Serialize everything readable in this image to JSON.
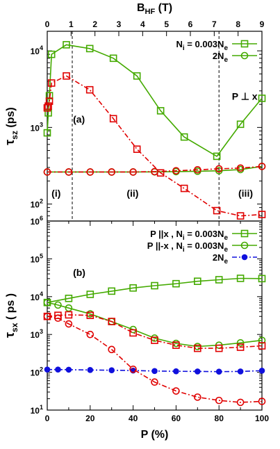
{
  "chart_data": [
    {
      "id": "a",
      "type": "line",
      "x_top": {
        "label_main": "B",
        "label_sub": "HF",
        "label_unit": " (T)",
        "range": [
          0,
          9
        ],
        "ticks": [
          0,
          1,
          2,
          3,
          4,
          5,
          6,
          7,
          8,
          9
        ]
      },
      "x_bottom_range": [
        0,
        100
      ],
      "y": {
        "label_main": "τ",
        "label_sub": "sz",
        "label_unit": " (ps)",
        "scale": "log",
        "range": [
          60,
          18000
        ],
        "ticks": [
          {
            "value": 100,
            "mant": "10",
            "exp": "2"
          },
          {
            "value": 1000,
            "mant": "10",
            "exp": "3"
          },
          {
            "value": 10000,
            "mant": "10",
            "exp": "4"
          }
        ]
      },
      "grid": false,
      "legend_position": "top-right",
      "vlines": [
        7.5,
        80
      ],
      "annotations": [
        {
          "text": "(a)",
          "x": 12,
          "y": 1150
        },
        {
          "text": "P ⊥ x",
          "x": 86,
          "y": 2300
        },
        {
          "text": "(i)",
          "x": 2,
          "y": 125
        },
        {
          "text": "(ii)",
          "x": 37,
          "y": 125
        },
        {
          "text": "(iii)",
          "x": 89,
          "y": 125
        }
      ],
      "series": [
        {
          "name": "N",
          "name_sub": "i",
          "name_rest": " = 0.003N",
          "name_sub2": "e",
          "color": "#44aa00",
          "marker": "square",
          "dash": "solid",
          "x": [
            0,
            0.5,
            1,
            2,
            8.9,
            19.8,
            30.8,
            41.8,
            52.8,
            63.8,
            79,
            90,
            100
          ],
          "y": [
            850,
            1550,
            2600,
            9000,
            12000,
            10700,
            8000,
            4700,
            1650,
            750,
            420,
            1100,
            2400
          ]
        },
        {
          "name": "2N",
          "name_sub": "e",
          "name_rest": "",
          "name_sub2": "",
          "color": "#44aa00",
          "marker": "circle",
          "dash": "solid",
          "x": [
            0,
            10,
            20,
            30,
            40,
            50,
            60,
            70,
            80,
            90,
            100
          ],
          "y": [
            262,
            262,
            262,
            262,
            262,
            263,
            265,
            268,
            272,
            282,
            310
          ]
        },
        {
          "name": "",
          "color": "#e00000",
          "marker": "square",
          "dash": "dashdot",
          "x": [
            0,
            0.5,
            1,
            2,
            8.9,
            19.8,
            30.8,
            41.8,
            52.8,
            63.8,
            79,
            90,
            100
          ],
          "y": [
            1800,
            1900,
            2200,
            3800,
            4700,
            3100,
            1300,
            520,
            255,
            160,
            82,
            70,
            73
          ]
        },
        {
          "name": "",
          "color": "#e00000",
          "marker": "circle",
          "dash": "dashdot",
          "x": [
            0,
            10,
            20,
            30,
            40,
            50,
            60,
            70,
            80,
            90,
            100
          ],
          "y": [
            262,
            262,
            262,
            262,
            262,
            265,
            272,
            280,
            288,
            295,
            310
          ]
        }
      ]
    },
    {
      "id": "b",
      "type": "line",
      "x": {
        "label_main": "P",
        "label_unit": " (%)",
        "range": [
          0,
          100
        ],
        "ticks": [
          0,
          20,
          40,
          60,
          80,
          100
        ]
      },
      "y": {
        "label_main": "τ",
        "label_sub": "sx",
        "label_unit": " ( ps )",
        "scale": "log",
        "range": [
          10,
          1000000
        ],
        "ticks": [
          {
            "value": 10,
            "mant": "10",
            "exp": "1"
          },
          {
            "value": 100,
            "mant": "10",
            "exp": "2"
          },
          {
            "value": 1000,
            "mant": "10",
            "exp": "3"
          },
          {
            "value": 10000,
            "mant": "10",
            "exp": "4"
          },
          {
            "value": 100000,
            "mant": "10",
            "exp": "5"
          },
          {
            "value": 1000000,
            "mant": "10",
            "exp": "6"
          }
        ]
      },
      "grid": false,
      "legend_position": "top-right",
      "annotations": [
        {
          "text": "(b)",
          "x": 12,
          "y": 35000
        }
      ],
      "series": [
        {
          "name": "P ||x , N",
          "name_sub": "i",
          "name_rest": " = 0.003N",
          "name_sub2": "e",
          "color": "#44aa00",
          "marker": "square",
          "dash": "solid",
          "x": [
            0,
            10,
            20,
            30,
            40,
            50,
            60,
            70,
            80,
            90,
            100
          ],
          "y": [
            7000,
            9000,
            11500,
            14000,
            17000,
            19500,
            22000,
            25500,
            28000,
            30500,
            30000
          ]
        },
        {
          "name": "P ||-x , N",
          "name_sub": "i",
          "name_rest": " = 0.003N",
          "name_sub2": "e",
          "color": "#44aa00",
          "marker": "circle",
          "dash": "solid",
          "x": [
            0,
            5,
            10,
            20,
            30,
            40,
            50,
            60,
            70,
            80,
            90,
            100
          ],
          "y": [
            7000,
            6000,
            5000,
            3500,
            2200,
            1350,
            800,
            580,
            480,
            520,
            600,
            700
          ]
        },
        {
          "name": "2N",
          "name_sub": "e",
          "name_rest": "",
          "name_sub2": "",
          "color": "#1010dd",
          "marker": "dot",
          "dash": "dashdot",
          "x": [
            0,
            5,
            10,
            20,
            30,
            40,
            50,
            60,
            70,
            80,
            90,
            100
          ],
          "y": [
            118,
            118,
            117,
            115,
            113,
            111,
            108,
            106,
            105,
            104,
            105,
            110
          ]
        },
        {
          "name": "",
          "color": "#e00000",
          "marker": "square",
          "dash": "dashdot",
          "x": [
            0,
            5,
            10,
            20,
            30,
            40,
            50,
            60,
            70,
            80,
            90,
            100
          ],
          "y": [
            3000,
            3200,
            3300,
            3200,
            2200,
            1100,
            700,
            520,
            430,
            430,
            460,
            500
          ]
        },
        {
          "name": "",
          "color": "#e00000",
          "marker": "circle",
          "dash": "dashdot",
          "x": [
            0,
            5,
            10,
            20,
            30,
            40,
            50,
            60,
            70,
            80,
            90,
            100
          ],
          "y": [
            3000,
            2700,
            1900,
            1000,
            400,
            120,
            55,
            32,
            22,
            18,
            16,
            17
          ]
        }
      ]
    }
  ]
}
